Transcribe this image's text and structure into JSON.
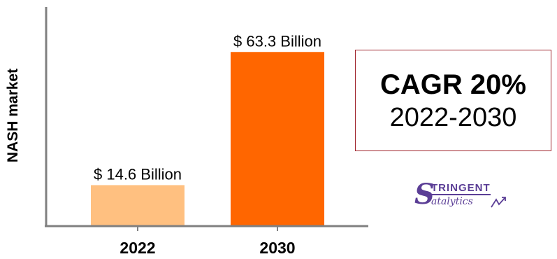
{
  "chart_data": {
    "type": "bar",
    "categories": [
      "2022",
      "2030"
    ],
    "values": [
      14.6,
      63.3
    ],
    "value_labels": [
      "$ 14.6 Billion",
      "$ 63.3 Billion"
    ],
    "colors": [
      "#ffc080",
      "#ff6600"
    ],
    "ylabel": "NASH market",
    "xlabel": "",
    "ylim": [
      0,
      70
    ],
    "grid": false
  },
  "annotation": {
    "cagr_title": "CAGR 20%",
    "cagr_period": "2022-2030",
    "border_color": "#a0262e"
  },
  "logo": {
    "initial": "S",
    "top_word": "TRINGENT",
    "bottom_word": "atalytics",
    "color": "#5b3e96",
    "icon": "growth-line-icon"
  }
}
